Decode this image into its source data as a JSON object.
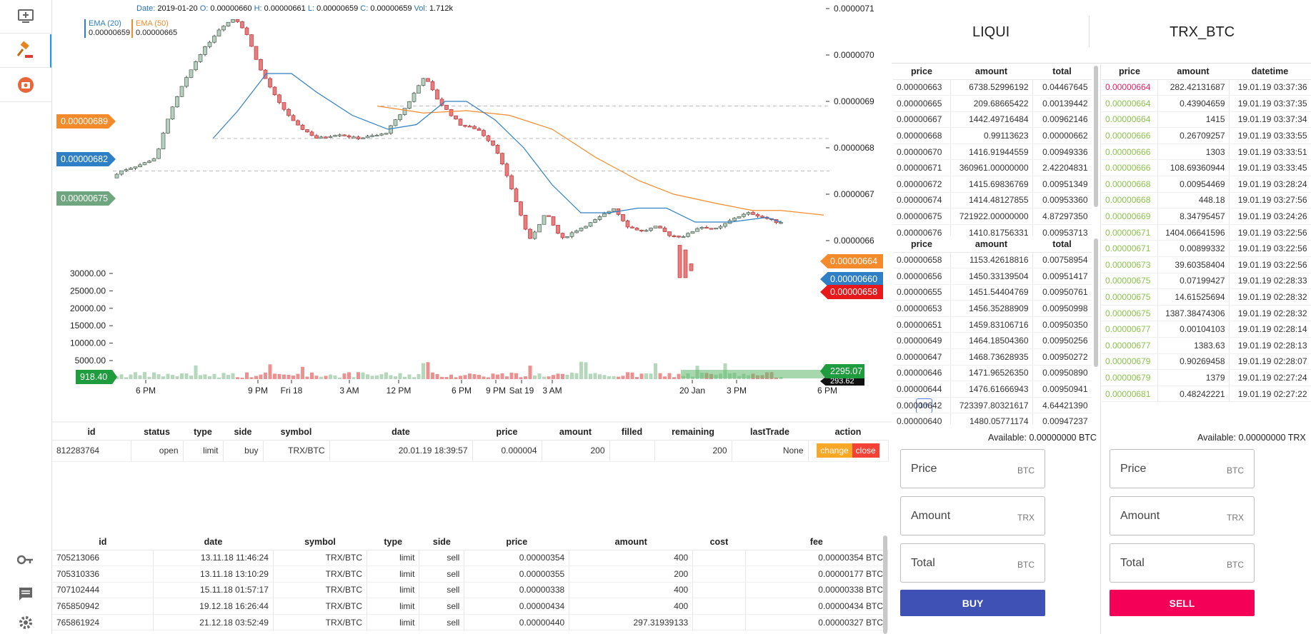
{
  "sidebar": {
    "top_icons": [
      "add-chart-icon",
      "gavel-icon",
      "camera-badge-icon"
    ],
    "bottom_icons": [
      "key-icon",
      "message-icon",
      "settings-icon"
    ]
  },
  "chart": {
    "ohlc": {
      "date_label": "Date:",
      "date": "2019-01-20",
      "o_label": "O:",
      "o": "0.00000660",
      "h_label": "H:",
      "h": "0.00000661",
      "l_label": "L:",
      "l": "0.00000659",
      "c_label": "C:",
      "c": "0.00000659",
      "vol_label": "Vol:",
      "vol": "1.712k"
    },
    "ema20": {
      "name": "EMA (20)",
      "value": "0.00000659",
      "color": "#2e7fc5"
    },
    "ema50": {
      "name": "EMA (50)",
      "value": "0.00000665",
      "color": "#f58a2b"
    },
    "left_badges": [
      {
        "text": "0.00000689",
        "color": "#f58a2b"
      },
      {
        "text": "0.00000682",
        "color": "#2e7fc5"
      },
      {
        "text": "0.00000675",
        "color": "#6fa67f"
      }
    ],
    "right_badges": [
      {
        "text": "0.00000664",
        "color": "#f58a2b"
      },
      {
        "text": "0.00000660",
        "color": "#2e7fc5"
      },
      {
        "text": "0.00000658",
        "color": "#e8191b"
      }
    ],
    "volume_left_badge": "918.40",
    "volume_right_badge": "2295.07",
    "volume_right_sub": "293.62",
    "timeframe": "1m",
    "colors": {
      "up": "#b7cfbf",
      "down": "#e97c7c",
      "up_stroke": "#3a4a3e",
      "down_stroke": "#a8262a"
    }
  },
  "chart_data": {
    "type": "candlestick",
    "price_axis": [
      "0.0000071",
      "0.0000070",
      "0.0000069",
      "0.0000068",
      "0.0000067",
      "0.0000066",
      "0.0000065"
    ],
    "volume_axis": [
      "30000.00",
      "25000.00",
      "20000.00",
      "15000.00",
      "10000.00",
      "5000.00"
    ],
    "time_axis": [
      "6 PM",
      "9 PM",
      "Fri 18",
      "3 AM",
      "12 PM",
      "6 PM",
      "9 PM",
      "Sat 19",
      "3 AM",
      "20 Jan",
      "3 PM",
      "6 PM"
    ],
    "series": [
      {
        "name": "EMA (20)",
        "last": 6.59e-06
      },
      {
        "name": "EMA (50)",
        "last": 6.65e-06
      }
    ],
    "alert_lines": [
      6.89e-06,
      6.82e-06,
      6.75e-06
    ]
  },
  "open_orders": {
    "columns": [
      "id",
      "status",
      "type",
      "side",
      "symbol",
      "date",
      "price",
      "amount",
      "filled",
      "remaining",
      "lastTrade",
      "action"
    ],
    "rows": [
      {
        "id": "812283764",
        "status": "open",
        "type": "limit",
        "side": "buy",
        "symbol": "TRX/BTC",
        "date": "20.01.19 18:39:57",
        "price": "0.000004",
        "amount": "200",
        "filled": "",
        "remaining": "200",
        "lastTrade": "None"
      }
    ],
    "change_label": "change",
    "close_label": "close"
  },
  "my_trades": {
    "columns": [
      "id",
      "date",
      "symbol",
      "type",
      "side",
      "price",
      "amount",
      "cost",
      "fee"
    ],
    "rows": [
      [
        "705213066",
        "13.11.18 11:46:24",
        "TRX/BTC",
        "limit",
        "sell",
        "0.00000354",
        "400",
        "",
        "0.00000354 BTC"
      ],
      [
        "705310336",
        "13.11.18 13:10:29",
        "TRX/BTC",
        "limit",
        "sell",
        "0.00000355",
        "200",
        "",
        "0.00000177 BTC"
      ],
      [
        "707102444",
        "15.11.18 01:57:17",
        "TRX/BTC",
        "limit",
        "sell",
        "0.00000338",
        "400",
        "",
        "0.00000338 BTC"
      ],
      [
        "765850942",
        "19.12.18 16:26:44",
        "TRX/BTC",
        "limit",
        "sell",
        "0.00000434",
        "400",
        "",
        "0.00000434 BTC"
      ],
      [
        "765861924",
        "21.12.18 03:52:49",
        "TRX/BTC",
        "limit",
        "sell",
        "0.00000440",
        "297.31939133",
        "",
        "0.00000327 BTC"
      ]
    ]
  },
  "exchange": {
    "name": "LIQUI",
    "pair": "TRX_BTC"
  },
  "asks": {
    "columns": [
      "price",
      "amount",
      "total"
    ],
    "rows": [
      [
        "0.00000663",
        "6738.52996192",
        "0.04467645"
      ],
      [
        "0.00000665",
        "209.68665422",
        "0.00139442"
      ],
      [
        "0.00000667",
        "1442.49716484",
        "0.00962146"
      ],
      [
        "0.00000668",
        "0.99113623",
        "0.00000662"
      ],
      [
        "0.00000670",
        "1416.91944559",
        "0.00949336"
      ],
      [
        "0.00000671",
        "360961.00000000",
        "2.42204831"
      ],
      [
        "0.00000672",
        "1415.69836769",
        "0.00951349"
      ],
      [
        "0.00000674",
        "1414.48127855",
        "0.00953360"
      ],
      [
        "0.00000675",
        "721922.00000000",
        "4.87297350"
      ],
      [
        "0.00000676",
        "1410.81756331",
        "0.00953713"
      ]
    ]
  },
  "bids": {
    "columns": [
      "price",
      "amount",
      "total"
    ],
    "rows": [
      [
        "0.00000658",
        "1153.42618816",
        "0.00758954"
      ],
      [
        "0.00000656",
        "1450.33139504",
        "0.00951417"
      ],
      [
        "0.00000655",
        "1451.54404769",
        "0.00950761"
      ],
      [
        "0.00000653",
        "1456.35288909",
        "0.00950998"
      ],
      [
        "0.00000651",
        "1459.83106716",
        "0.00950350"
      ],
      [
        "0.00000649",
        "1464.18504360",
        "0.00950256"
      ],
      [
        "0.00000647",
        "1468.73628935",
        "0.00950272"
      ],
      [
        "0.00000646",
        "1471.96526350",
        "0.00950890"
      ],
      [
        "0.00000644",
        "1476.61666943",
        "0.00950941"
      ],
      [
        "0.00000642",
        "723397.80321617",
        "4.64421390"
      ],
      [
        "0.00000640",
        "1480.05771174",
        "0.00947237"
      ]
    ]
  },
  "trade_history": {
    "columns": [
      "price",
      "amount",
      "datetime"
    ],
    "rows": [
      [
        "0.00000664",
        "282.42131687",
        "19.01.19 03:37:36",
        "#e91e63"
      ],
      [
        "0.00000664",
        "0.43904659",
        "19.01.19 03:37:35",
        "#8bc34a"
      ],
      [
        "0.00000664",
        "1415",
        "19.01.19 03:37:34",
        "#8bc34a"
      ],
      [
        "0.00000666",
        "0.26709257",
        "19.01.19 03:33:55",
        "#8bc34a"
      ],
      [
        "0.00000666",
        "1303",
        "19.01.19 03:33:51",
        "#8bc34a"
      ],
      [
        "0.00000666",
        "108.69360944",
        "19.01.19 03:33:45",
        "#8bc34a"
      ],
      [
        "0.00000668",
        "0.00954469",
        "19.01.19 03:28:24",
        "#8bc34a"
      ],
      [
        "0.00000668",
        "448.18",
        "19.01.19 03:27:56",
        "#8bc34a"
      ],
      [
        "0.00000669",
        "8.34795457",
        "19.01.19 03:24:26",
        "#8bc34a"
      ],
      [
        "0.00000671",
        "1404.06641596",
        "19.01.19 03:22:56",
        "#8bc34a"
      ],
      [
        "0.00000671",
        "0.00899332",
        "19.01.19 03:22:56",
        "#8bc34a"
      ],
      [
        "0.00000673",
        "39.60358404",
        "19.01.19 03:22:56",
        "#8bc34a"
      ],
      [
        "0.00000675",
        "0.07199427",
        "19.01.19 02:28:33",
        "#8bc34a"
      ],
      [
        "0.00000675",
        "14.61525694",
        "19.01.19 02:28:32",
        "#8bc34a"
      ],
      [
        "0.00000675",
        "1387.38474306",
        "19.01.19 02:28:32",
        "#8bc34a"
      ],
      [
        "0.00000677",
        "0.00104103",
        "19.01.19 02:28:14",
        "#8bc34a"
      ],
      [
        "0.00000677",
        "1383.63",
        "19.01.19 02:28:13",
        "#8bc34a"
      ],
      [
        "0.00000679",
        "0.90269458",
        "19.01.19 02:28:07",
        "#8bc34a"
      ],
      [
        "0.00000679",
        "1379",
        "19.01.19 02:27:24",
        "#8bc34a"
      ],
      [
        "0.00000681",
        "0.48242221",
        "19.01.19 02:27:22",
        "#8bc34a"
      ]
    ]
  },
  "buy_form": {
    "available": "Available: 0.00000000 BTC",
    "price": {
      "placeholder": "Price",
      "unit": "BTC"
    },
    "amount": {
      "placeholder": "Amount",
      "unit": "TRX"
    },
    "total": {
      "placeholder": "Total",
      "unit": "BTC"
    },
    "button": "BUY",
    "color": "#3f51b5"
  },
  "sell_form": {
    "available": "Available: 0.00000000 TRX",
    "price": {
      "placeholder": "Price",
      "unit": "BTC"
    },
    "amount": {
      "placeholder": "Amount",
      "unit": "TRX"
    },
    "total": {
      "placeholder": "Total",
      "unit": "BTC"
    },
    "button": "SELL",
    "color": "#f50057"
  }
}
